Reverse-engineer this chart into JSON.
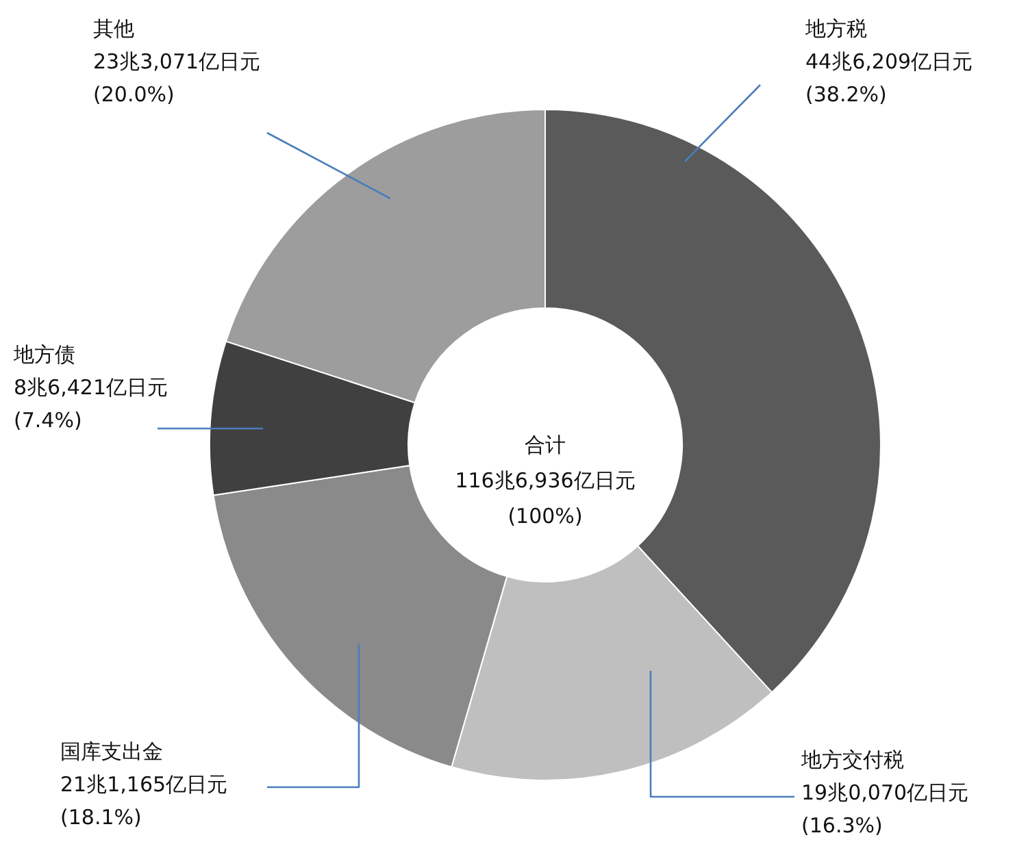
{
  "chart_data": {
    "type": "donut",
    "categories": [
      "地方税",
      "地方交付税",
      "国库支出金",
      "地方债",
      "其他"
    ],
    "values": [
      38.2,
      16.3,
      18.1,
      7.4,
      20.0
    ],
    "colors": [
      "#5a5a5a",
      "#bfbfbf",
      "#8a8a8a",
      "#404040",
      "#9d9d9d"
    ],
    "value_labels": [
      "44兆6,209亿日元\n(38.2%)",
      "19兆0,070亿日元\n(16.3%)",
      "21兆1,165亿日元\n(18.1%)",
      "8兆6,421亿日元\n(7.4%)",
      "23兆3,071亿日元\n(20.0%)"
    ],
    "annotations": [
      "合计\n116兆6,936亿日元\n(100%)"
    ]
  }
}
